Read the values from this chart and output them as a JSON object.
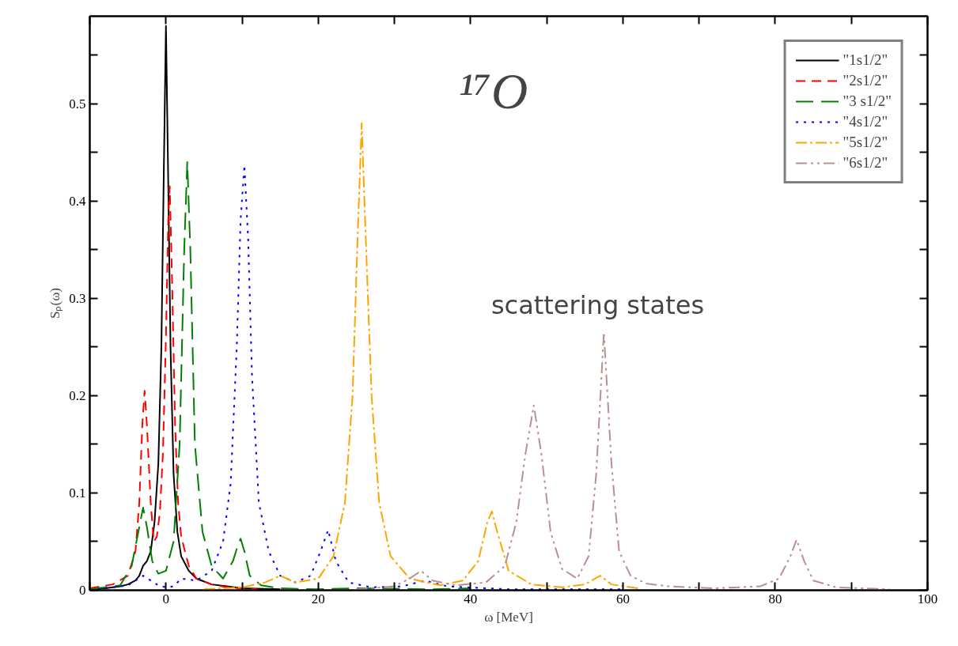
{
  "chart_data": {
    "type": "line",
    "xlabel": "ω [MeV]",
    "ylabel": "Sₚ(ω)",
    "xlim": [
      -10,
      100
    ],
    "ylim": [
      0,
      0.59
    ],
    "xticks": [
      {
        "value": -10,
        "label": null
      },
      0,
      {
        "value": 10,
        "label": null
      },
      20,
      {
        "value": 30,
        "label": null
      },
      40,
      {
        "value": 50,
        "label": null
      },
      60,
      {
        "value": 70,
        "label": null
      },
      80,
      {
        "value": 90,
        "label": null
      },
      100
    ],
    "yticks": [
      0,
      {
        "value": 0.05,
        "label": null
      },
      0.1,
      {
        "value": 0.15,
        "label": null
      },
      0.2,
      {
        "value": 0.25,
        "label": null
      },
      0.3,
      {
        "value": 0.35,
        "label": null
      },
      0.4,
      {
        "value": 0.45,
        "label": null
      },
      0.5,
      {
        "value": 0.55,
        "label": null
      }
    ],
    "grid": false,
    "legend": "top right",
    "marker": "none",
    "annotations": [
      "¹⁷O",
      "scattering states"
    ],
    "series": [
      {
        "name": "\"1s1/2\"",
        "color": "#000000",
        "line_style": "solid",
        "x": [
          -10,
          -8,
          -6,
          -5,
          -4,
          -3.5,
          -3,
          -2.5,
          -2,
          -1.5,
          -1,
          -0.6,
          -0.3,
          0,
          0.3,
          0.6,
          1,
          1.5,
          2,
          3,
          4,
          6,
          8,
          10,
          15
        ],
        "values": [
          0.001,
          0.002,
          0.004,
          0.006,
          0.01,
          0.015,
          0.025,
          0.03,
          0.04,
          0.07,
          0.13,
          0.25,
          0.42,
          0.58,
          0.42,
          0.25,
          0.12,
          0.06,
          0.035,
          0.02,
          0.012,
          0.006,
          0.004,
          0.002,
          0.001
        ]
      },
      {
        "name": "\"2s1/2\"",
        "color": "#ff0000",
        "line_style": "dashed",
        "x": [
          -10,
          -7,
          -5,
          -4,
          -3.5,
          -3.1,
          -2.8,
          -2.5,
          -2,
          -1.6,
          -1.2,
          -0.8,
          -0.4,
          0,
          0.3,
          0.5,
          0.8,
          1.2,
          1.6,
          2,
          3,
          4,
          6,
          8,
          12
        ],
        "values": [
          0.002,
          0.006,
          0.015,
          0.04,
          0.09,
          0.17,
          0.205,
          0.17,
          0.09,
          0.05,
          0.055,
          0.08,
          0.14,
          0.26,
          0.38,
          0.415,
          0.32,
          0.17,
          0.09,
          0.055,
          0.025,
          0.012,
          0.006,
          0.003,
          0.001
        ]
      },
      {
        "name": "\"3 s1/2\"",
        "color": "#008000",
        "line_style": "longdash",
        "x": [
          -10,
          -6,
          -4.5,
          -3.5,
          -3,
          -2.5,
          -1.8,
          -1,
          0,
          1,
          1.8,
          2.4,
          2.8,
          3.2,
          3.8,
          4.8,
          6,
          7.5,
          8.8,
          9.4,
          9.8,
          10.3,
          11,
          12.5,
          15,
          20,
          25,
          35,
          40
        ],
        "values": [
          0.001,
          0.005,
          0.025,
          0.065,
          0.085,
          0.065,
          0.03,
          0.017,
          0.02,
          0.05,
          0.15,
          0.35,
          0.44,
          0.35,
          0.15,
          0.06,
          0.025,
          0.012,
          0.03,
          0.045,
          0.053,
          0.04,
          0.015,
          0.005,
          0.002,
          0.001,
          0.002,
          0.001,
          0.002
        ]
      },
      {
        "name": "\"4s1/2\"",
        "color": "#0000ff",
        "line_style": "dotted",
        "x": [
          -10,
          -5,
          -3,
          -1,
          0,
          1,
          2,
          4,
          6,
          7.5,
          8.5,
          9.3,
          9.8,
          10.3,
          10.8,
          11.3,
          12.2,
          13.5,
          15,
          17,
          19,
          20.3,
          21.3,
          22.3,
          24,
          27,
          31,
          34,
          37,
          45,
          60
        ],
        "values": [
          0,
          0.005,
          0.015,
          0.005,
          0.003,
          0.004,
          0.012,
          0.01,
          0.02,
          0.05,
          0.11,
          0.25,
          0.38,
          0.437,
          0.36,
          0.22,
          0.09,
          0.04,
          0.015,
          0.008,
          0.015,
          0.04,
          0.062,
          0.03,
          0.008,
          0.003,
          0.004,
          0.01,
          0.004,
          0.001,
          0.001
        ]
      },
      {
        "name": "\"5s1/2\"",
        "color": "#ffa500",
        "line_style": "dashdot",
        "x": [
          5,
          10,
          13,
          15,
          17,
          20,
          22,
          23.5,
          24.5,
          25.2,
          25.7,
          26.2,
          27,
          28,
          29.5,
          32,
          36,
          39,
          41,
          42.2,
          42.8,
          43.5,
          45,
          48,
          52,
          55,
          57,
          58.5,
          62
        ],
        "values": [
          0.001,
          0.003,
          0.008,
          0.015,
          0.008,
          0.012,
          0.035,
          0.09,
          0.2,
          0.37,
          0.48,
          0.37,
          0.2,
          0.09,
          0.035,
          0.012,
          0.005,
          0.01,
          0.03,
          0.07,
          0.081,
          0.06,
          0.02,
          0.006,
          0.003,
          0.006,
          0.015,
          0.006,
          0.002
        ]
      },
      {
        "name": "\"6s1/2\"",
        "color": "#bc8f8f",
        "line_style": "dashdotdot",
        "x": [
          25,
          30,
          32,
          33.5,
          35,
          38,
          42,
          44.5,
          46,
          47.2,
          48.3,
          49.3,
          50.5,
          52,
          54,
          55.5,
          56.5,
          57.5,
          58.5,
          59.5,
          61,
          63,
          66,
          72,
          78,
          80.5,
          82,
          82.8,
          83.8,
          85,
          88,
          95
        ],
        "values": [
          0.001,
          0.004,
          0.012,
          0.02,
          0.01,
          0.005,
          0.008,
          0.025,
          0.07,
          0.14,
          0.19,
          0.14,
          0.06,
          0.022,
          0.012,
          0.035,
          0.12,
          0.265,
          0.13,
          0.04,
          0.015,
          0.007,
          0.004,
          0.002,
          0.004,
          0.012,
          0.035,
          0.052,
          0.03,
          0.01,
          0.003,
          0.001
        ]
      }
    ]
  }
}
